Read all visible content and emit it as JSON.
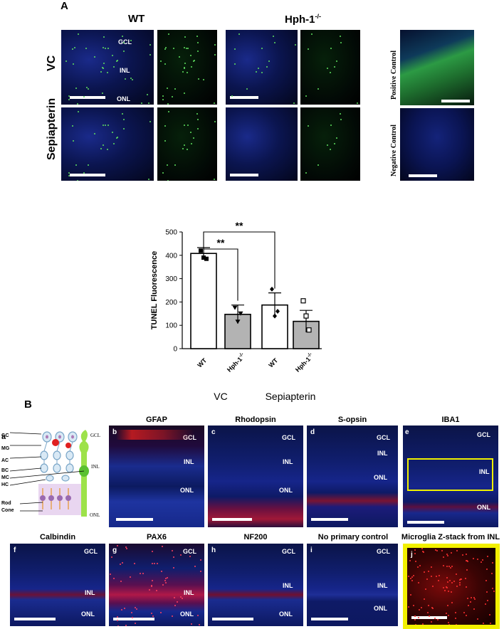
{
  "panel_A": {
    "letter": "A",
    "col_wt": "WT",
    "col_hph": "Hph-1",
    "col_hph_sup": "-/-",
    "row_vc": "VC",
    "row_sep": "Sepiapterin",
    "layers": {
      "gcl": "GCL",
      "inl": "INL",
      "onl": "ONL"
    },
    "positive_control": "Positive Control",
    "negative_control": "Negative Control"
  },
  "chart_data": {
    "type": "bar",
    "ylabel": "TUNEL Fluorescence",
    "ylim": [
      0,
      500
    ],
    "yticks": [
      "0",
      "100",
      "200",
      "300",
      "400",
      "500"
    ],
    "groups": [
      "VC",
      "Sepiapterin"
    ],
    "categories": [
      "WT",
      "Hph-1",
      "WT",
      "Hph-1"
    ],
    "category_sup": [
      "",
      "-/-",
      "",
      "-/-"
    ],
    "values": [
      408,
      147,
      187,
      117
    ],
    "errors": [
      25,
      40,
      52,
      47
    ],
    "fills": [
      "#ffffff",
      "#b3b3b3",
      "#ffffff",
      "#b3b3b3"
    ],
    "points": [
      [
        420,
        390,
        385
      ],
      [
        175,
        115,
        150
      ],
      [
        255,
        140,
        160
      ],
      [
        205,
        140,
        80
      ]
    ],
    "markers": [
      "square",
      "triangle",
      "diamond",
      "open-square"
    ],
    "significance": [
      {
        "from": 0,
        "to": 1,
        "label": "**"
      },
      {
        "from": 0,
        "to": 2,
        "label": "**"
      }
    ]
  },
  "panel_B": {
    "letter": "B",
    "schematic": {
      "tag": "a",
      "cells": [
        "GC",
        "MG",
        "AC",
        "BC",
        "MC",
        "HC",
        "Rod",
        "Cone"
      ],
      "layers": [
        "GCL",
        "INL",
        "ONL"
      ]
    },
    "images": [
      {
        "tag": "b",
        "title": "GFAP"
      },
      {
        "tag": "c",
        "title": "Rhodopsin"
      },
      {
        "tag": "d",
        "title": "S-opsin"
      },
      {
        "tag": "e",
        "title": "IBA1"
      },
      {
        "tag": "f",
        "title": "Calbindin"
      },
      {
        "tag": "g",
        "title": "PAX6"
      },
      {
        "tag": "h",
        "title": "NF200"
      },
      {
        "tag": "i",
        "title": "No primary control"
      },
      {
        "tag": "j",
        "title": "Microglia Z-stack from INL"
      }
    ],
    "layer_labels": {
      "gcl": "GCL",
      "inl": "INL",
      "onl": "ONL"
    }
  }
}
